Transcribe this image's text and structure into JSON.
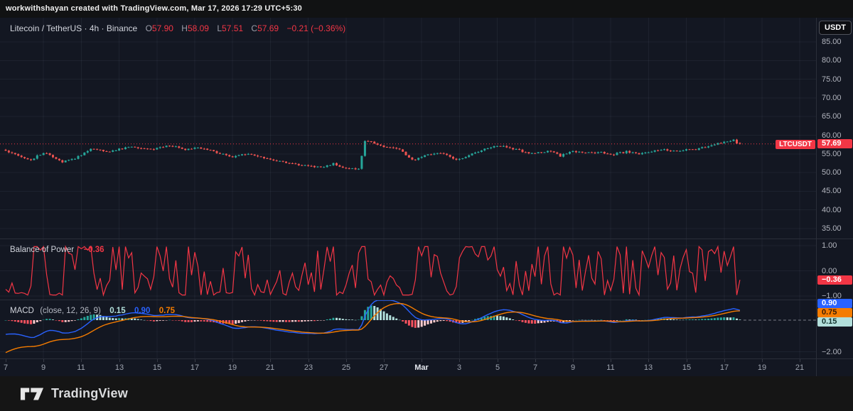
{
  "topbar": {
    "text": "workwithshayan created with TradingView.com, Mar 17, 2026 17:29 UTC+5:30"
  },
  "symbol_legend": {
    "title": "Litecoin / TetherUS · 4h · Binance",
    "ohlc": {
      "o": {
        "k": "O",
        "v": "57.90"
      },
      "h": {
        "k": "H",
        "v": "58.09"
      },
      "l": {
        "k": "L",
        "v": "57.51"
      },
      "c": {
        "k": "C",
        "v": "57.69"
      }
    },
    "change": "−0.21 (−0.36%)"
  },
  "price_scale": {
    "unit_button": "USDT",
    "ticks": [
      "85.00",
      "80.00",
      "75.00",
      "70.00",
      "65.00",
      "60.00",
      "55.00",
      "50.00",
      "45.00",
      "40.00",
      "35.00"
    ],
    "badge_symbol": "LTCUSDT",
    "badge_value": "57.69"
  },
  "bop": {
    "title": "Balance of Power",
    "value": "−0.36",
    "badge": "−0.36",
    "ticks": [
      "1.00",
      "0.00",
      "−1.00"
    ]
  },
  "macd": {
    "title": "MACD",
    "params": "(close, 12, 26, 9)",
    "hist": "0.15",
    "macd_v": "0.90",
    "signal_v": "0.75",
    "badge_macd": "0.90",
    "badge_signal": "0.75",
    "badge_hist": "0.15",
    "tick": "−2.00"
  },
  "time_axis": {
    "labels": [
      {
        "t": "7"
      },
      {
        "t": "9"
      },
      {
        "t": "11"
      },
      {
        "t": "13"
      },
      {
        "t": "15"
      },
      {
        "t": "17"
      },
      {
        "t": "19"
      },
      {
        "t": "21"
      },
      {
        "t": "23"
      },
      {
        "t": "25"
      },
      {
        "t": "27"
      },
      {
        "t": "Mar",
        "major": true
      },
      {
        "t": "3"
      },
      {
        "t": "5"
      },
      {
        "t": "7"
      },
      {
        "t": "9"
      },
      {
        "t": "11"
      },
      {
        "t": "13"
      },
      {
        "t": "15"
      },
      {
        "t": "17"
      },
      {
        "t": "19"
      },
      {
        "t": "21"
      }
    ]
  },
  "footer": {
    "brand": "TradingView"
  },
  "colors": {
    "background": "#131722",
    "grid": "rgba(175,185,215,0.07)",
    "separator": "#2a2e39",
    "axis_text": "#b2b5be",
    "up": "#26a69a",
    "down": "#ef5350",
    "accent_red": "#f23645",
    "macd_line": "#2962ff",
    "signal_line": "#f57c00",
    "hist_grow_above": "#26a69a",
    "hist_fall_above": "#b2dfdb",
    "hist_fall_below": "#f7525f",
    "hist_grow_below": "#fccbcd",
    "badge_blue": "#2962ff",
    "badge_orange": "#f57c00",
    "badge_teal": "#b2dfdb"
  },
  "chart_data": {
    "type": "candlestick",
    "symbol": "LTCUSDT",
    "interval": "4h",
    "exchange": "Binance",
    "title": "Litecoin / TetherUS · 4h · Binance",
    "visible_price_range": [
      33,
      87
    ],
    "price_gridlines": [
      35,
      40,
      45,
      50,
      55,
      60,
      65,
      70,
      75,
      80,
      85
    ],
    "candle_count": 234,
    "candles_per_day": 6,
    "time_span": "Feb 7 – Mar 21, last candle Mar 17",
    "last_candle": {
      "o": 57.9,
      "h": 58.09,
      "l": 57.51,
      "c": 57.69
    },
    "change": -0.21,
    "change_pct": -0.36,
    "close_anchors": [
      [
        0,
        56.0
      ],
      [
        3,
        54.9
      ],
      [
        8,
        53.4
      ],
      [
        12,
        55.4
      ],
      [
        15,
        54.3
      ],
      [
        18,
        52.8
      ],
      [
        22,
        53.8
      ],
      [
        27,
        56.4
      ],
      [
        33,
        55.7
      ],
      [
        40,
        57.0
      ],
      [
        46,
        56.2
      ],
      [
        52,
        57.3
      ],
      [
        57,
        56.2
      ],
      [
        62,
        56.6
      ],
      [
        68,
        55.1
      ],
      [
        72,
        54.2
      ],
      [
        76,
        55.0
      ],
      [
        87,
        53.1
      ],
      [
        94,
        52.0
      ],
      [
        100,
        51.3
      ],
      [
        104,
        52.4
      ],
      [
        108,
        51.2
      ],
      [
        112,
        51.0
      ],
      [
        113,
        54.5
      ],
      [
        114,
        58.6
      ],
      [
        116,
        58.2
      ],
      [
        120,
        57.0
      ],
      [
        125,
        56.2
      ],
      [
        127,
        54.8
      ],
      [
        129,
        53.3
      ],
      [
        132,
        54.3
      ],
      [
        137,
        55.4
      ],
      [
        140,
        54.6
      ],
      [
        143,
        53.3
      ],
      [
        147,
        54.6
      ],
      [
        151,
        55.9
      ],
      [
        156,
        57.3
      ],
      [
        159,
        56.8
      ],
      [
        163,
        55.9
      ],
      [
        166,
        55.0
      ],
      [
        170,
        55.5
      ],
      [
        173,
        55.7
      ],
      [
        176,
        54.5
      ],
      [
        180,
        55.6
      ],
      [
        184,
        55.3
      ],
      [
        189,
        55.4
      ],
      [
        193,
        54.9
      ],
      [
        197,
        55.6
      ],
      [
        201,
        55.0
      ],
      [
        205,
        55.7
      ],
      [
        208,
        56.3
      ],
      [
        211,
        55.8
      ],
      [
        215,
        56.0
      ],
      [
        219,
        56.2
      ],
      [
        223,
        57.0
      ],
      [
        226,
        57.7
      ],
      [
        229,
        58.5
      ],
      [
        231,
        58.6
      ],
      [
        232,
        57.9
      ],
      [
        233,
        57.69
      ]
    ],
    "indicators": [
      {
        "name": "Balance of Power",
        "last": -0.36,
        "range": [
          -1,
          1
        ],
        "gridlines": [
          1,
          0,
          -1
        ],
        "line_color": "#f23645"
      },
      {
        "name": "MACD",
        "source": "close",
        "fast": 12,
        "slow": 26,
        "signal_len": 9,
        "last_hist": 0.15,
        "last_macd": 0.9,
        "last_signal": 0.75,
        "gridline": -2
      }
    ]
  }
}
